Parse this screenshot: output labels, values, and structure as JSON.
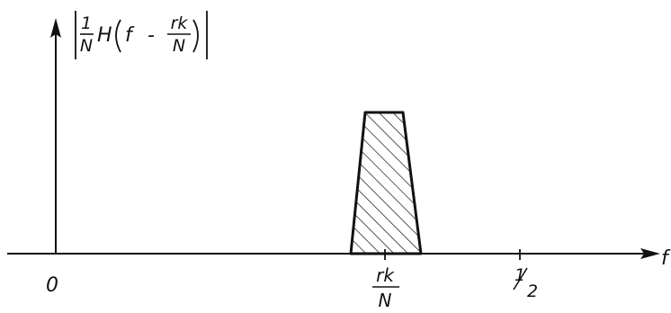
{
  "y_axis_label": {
    "fraction_numerator": "1",
    "fraction_denominator": "N",
    "function": "H",
    "argument_variable": "f",
    "operator": "-",
    "shift_numerator": "rk",
    "shift_denominator": "N"
  },
  "x_axis": {
    "variable": "f",
    "origin_label": "0",
    "peak_numerator": "rk",
    "peak_denominator": "N",
    "half_numerator": "1",
    "half_denominator": "2"
  },
  "passband": {
    "fill_pattern": "diagonal-hatch",
    "stroke_color": "#111111"
  }
}
